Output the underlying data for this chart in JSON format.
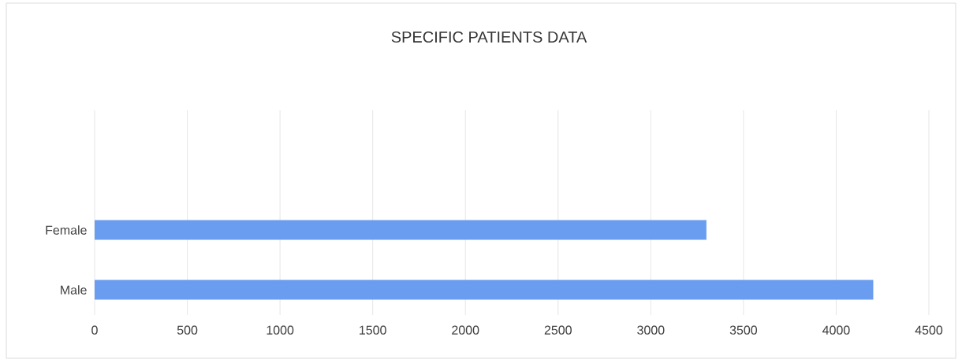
{
  "chart_data": {
    "type": "bar",
    "orientation": "horizontal",
    "title": "SPECIFIC PATIENTS DATA",
    "categories": [
      "Female",
      "Male"
    ],
    "values": [
      3300,
      4200
    ],
    "color": "#6a9cf0",
    "xlim": [
      0,
      4500
    ],
    "xticks": [
      0,
      500,
      1000,
      1500,
      2000,
      2500,
      3000,
      3500,
      4000,
      4500
    ],
    "grid": "x"
  }
}
